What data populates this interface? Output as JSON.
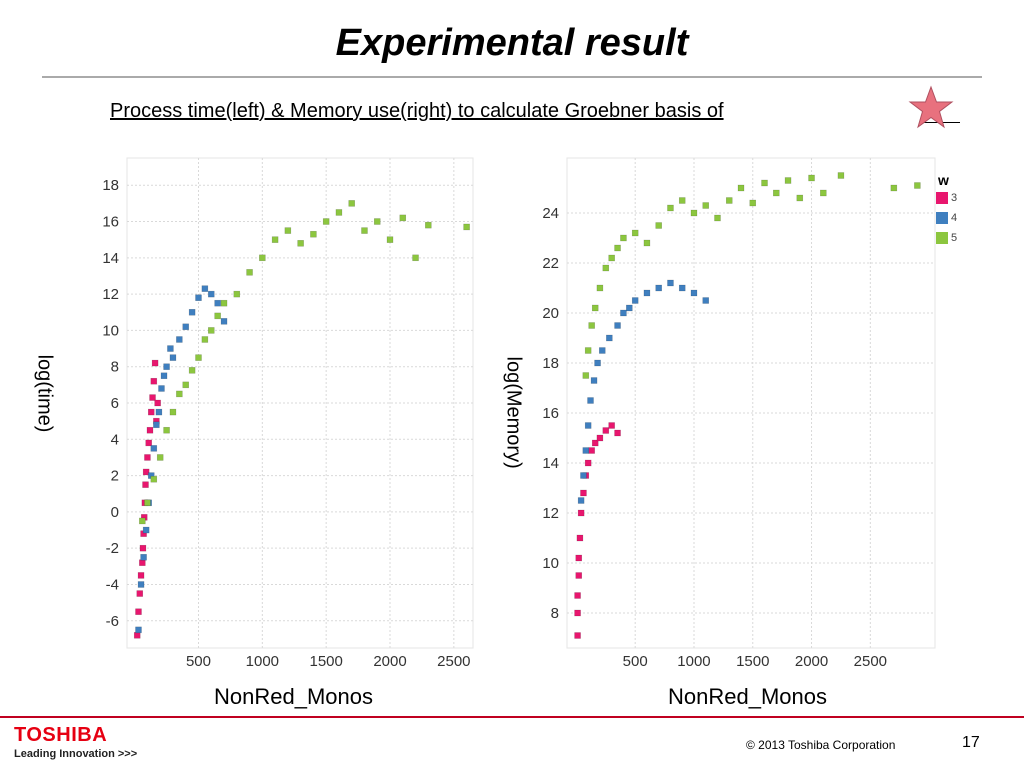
{
  "slide": {
    "title": "Experimental result",
    "subtitle": "Process time(left)  &  Memory use(right) to calculate Groebner basis of",
    "copyright": "© 2013 Toshiba Corporation",
    "page_number": "17",
    "logo_text": "TOSHIBA",
    "tagline": "Leading Innovation >>>"
  },
  "colors": {
    "c3": "#e8166e",
    "c4": "#3f7fbf",
    "c5": "#8cc63f",
    "grid": "#d9d9d9",
    "star": "#e8717e"
  },
  "legend": {
    "title": "w",
    "items": [
      {
        "label": "3",
        "color": "#e8166e"
      },
      {
        "label": "4",
        "color": "#3f7fbf"
      },
      {
        "label": "5",
        "color": "#8cc63f"
      }
    ]
  },
  "chart_data": [
    {
      "type": "scatter",
      "title": "",
      "xlabel": "NonRed_Monos",
      "ylabel": "log(time)",
      "xlim": [
        -60,
        2650
      ],
      "ylim": [
        -7.5,
        19.5
      ],
      "xticks": [
        "500",
        "1000",
        "1500",
        "2000",
        "2500"
      ],
      "yticks": [
        "-6",
        "-4",
        "-2",
        "0",
        "2",
        "4",
        "6",
        "8",
        "10",
        "12",
        "14",
        "16",
        "18"
      ],
      "series": [
        {
          "name": "3",
          "points": [
            [
              20,
              -6.8
            ],
            [
              30,
              -5.5
            ],
            [
              40,
              -4.5
            ],
            [
              50,
              -3.5
            ],
            [
              60,
              -2.8
            ],
            [
              65,
              -2.0
            ],
            [
              70,
              -1.2
            ],
            [
              75,
              -0.3
            ],
            [
              80,
              0.5
            ],
            [
              85,
              1.5
            ],
            [
              90,
              2.2
            ],
            [
              100,
              3.0
            ],
            [
              110,
              3.8
            ],
            [
              120,
              4.5
            ],
            [
              130,
              5.5
            ],
            [
              140,
              6.3
            ],
            [
              150,
              7.2
            ],
            [
              160,
              8.2
            ],
            [
              170,
              5.0
            ],
            [
              180,
              6.0
            ]
          ]
        },
        {
          "name": "4",
          "points": [
            [
              30,
              -6.5
            ],
            [
              50,
              -4.0
            ],
            [
              70,
              -2.5
            ],
            [
              90,
              -1.0
            ],
            [
              110,
              0.5
            ],
            [
              130,
              2.0
            ],
            [
              150,
              3.5
            ],
            [
              170,
              4.8
            ],
            [
              190,
              5.5
            ],
            [
              210,
              6.8
            ],
            [
              230,
              7.5
            ],
            [
              250,
              8.0
            ],
            [
              280,
              9.0
            ],
            [
              300,
              8.5
            ],
            [
              350,
              9.5
            ],
            [
              400,
              10.2
            ],
            [
              450,
              11.0
            ],
            [
              500,
              11.8
            ],
            [
              550,
              12.3
            ],
            [
              600,
              12.0
            ],
            [
              650,
              11.5
            ],
            [
              700,
              10.5
            ]
          ]
        },
        {
          "name": "5",
          "points": [
            [
              60,
              -0.5
            ],
            [
              100,
              0.5
            ],
            [
              150,
              1.8
            ],
            [
              200,
              3.0
            ],
            [
              250,
              4.5
            ],
            [
              300,
              5.5
            ],
            [
              350,
              6.5
            ],
            [
              400,
              7.0
            ],
            [
              450,
              7.8
            ],
            [
              500,
              8.5
            ],
            [
              550,
              9.5
            ],
            [
              600,
              10.0
            ],
            [
              650,
              10.8
            ],
            [
              700,
              11.5
            ],
            [
              800,
              12.0
            ],
            [
              900,
              13.2
            ],
            [
              1000,
              14.0
            ],
            [
              1100,
              15.0
            ],
            [
              1200,
              15.5
            ],
            [
              1300,
              14.8
            ],
            [
              1400,
              15.3
            ],
            [
              1500,
              16.0
            ],
            [
              1600,
              16.5
            ],
            [
              1700,
              17.0
            ],
            [
              1800,
              15.5
            ],
            [
              1900,
              16.0
            ],
            [
              2000,
              15.0
            ],
            [
              2100,
              16.2
            ],
            [
              2200,
              14.0
            ],
            [
              2300,
              15.8
            ],
            [
              2600,
              15.7
            ]
          ]
        }
      ]
    },
    {
      "type": "scatter",
      "title": "",
      "xlabel": "NonRed_Monos",
      "ylabel": "log(Memory)",
      "xlim": [
        -80,
        3050
      ],
      "ylim": [
        6.6,
        26.2
      ],
      "xticks": [
        "500",
        "1000",
        "1500",
        "2000",
        "2500"
      ],
      "yticks": [
        "8",
        "10",
        "12",
        "14",
        "16",
        "18",
        "20",
        "22",
        "24"
      ],
      "series": [
        {
          "name": "3",
          "points": [
            [
              10,
              7.1
            ],
            [
              10,
              8.0
            ],
            [
              10,
              8.7
            ],
            [
              20,
              9.5
            ],
            [
              20,
              10.2
            ],
            [
              30,
              11.0
            ],
            [
              40,
              12.0
            ],
            [
              60,
              12.8
            ],
            [
              80,
              13.5
            ],
            [
              100,
              14.0
            ],
            [
              130,
              14.5
            ],
            [
              160,
              14.8
            ],
            [
              200,
              15.0
            ],
            [
              250,
              15.3
            ],
            [
              300,
              15.5
            ],
            [
              350,
              15.2
            ]
          ]
        },
        {
          "name": "4",
          "points": [
            [
              40,
              12.5
            ],
            [
              60,
              13.5
            ],
            [
              80,
              14.5
            ],
            [
              100,
              15.5
            ],
            [
              120,
              16.5
            ],
            [
              150,
              17.3
            ],
            [
              180,
              18.0
            ],
            [
              220,
              18.5
            ],
            [
              280,
              19.0
            ],
            [
              350,
              19.5
            ],
            [
              400,
              20.0
            ],
            [
              450,
              20.2
            ],
            [
              500,
              20.5
            ],
            [
              600,
              20.8
            ],
            [
              700,
              21.0
            ],
            [
              800,
              21.2
            ],
            [
              900,
              21.0
            ],
            [
              1000,
              20.8
            ],
            [
              1100,
              20.5
            ]
          ]
        },
        {
          "name": "5",
          "points": [
            [
              80,
              17.5
            ],
            [
              100,
              18.5
            ],
            [
              130,
              19.5
            ],
            [
              160,
              20.2
            ],
            [
              200,
              21.0
            ],
            [
              250,
              21.8
            ],
            [
              300,
              22.2
            ],
            [
              350,
              22.6
            ],
            [
              400,
              23.0
            ],
            [
              500,
              23.2
            ],
            [
              600,
              22.8
            ],
            [
              700,
              23.5
            ],
            [
              800,
              24.2
            ],
            [
              900,
              24.5
            ],
            [
              1000,
              24.0
            ],
            [
              1100,
              24.3
            ],
            [
              1200,
              23.8
            ],
            [
              1300,
              24.5
            ],
            [
              1400,
              25.0
            ],
            [
              1500,
              24.4
            ],
            [
              1600,
              25.2
            ],
            [
              1700,
              24.8
            ],
            [
              1800,
              25.3
            ],
            [
              1900,
              24.6
            ],
            [
              2000,
              25.4
            ],
            [
              2100,
              24.8
            ],
            [
              2250,
              25.5
            ],
            [
              2700,
              25.0
            ],
            [
              2900,
              25.1
            ]
          ]
        }
      ]
    }
  ]
}
